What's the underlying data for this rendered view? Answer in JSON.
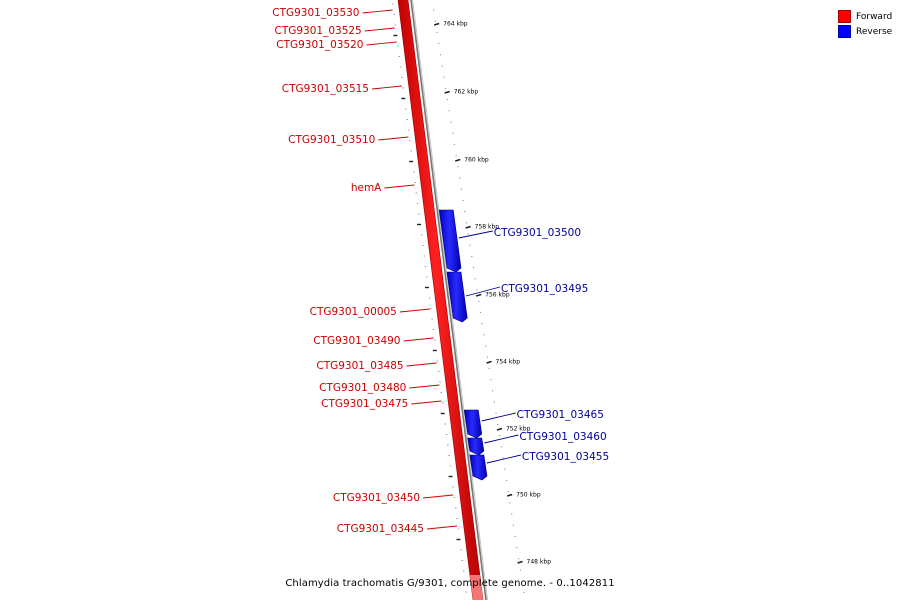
{
  "legend": {
    "items": [
      {
        "label": "Forward",
        "color": "#ff0000"
      },
      {
        "label": "Reverse",
        "color": "#0000ff"
      }
    ]
  },
  "footer": {
    "title": "Chlamydia trachomatis G/9301, complete genome. - 0..1042811"
  },
  "colors": {
    "forward": "#ff0000",
    "forward_label": "#cc0000",
    "reverse": "#0000ff",
    "reverse_label": "#000099",
    "axis": "#666666"
  },
  "scale_labels": [
    "764 kbp",
    "762 kbp",
    "760 kbp",
    "758 kbp",
    "756 kbp",
    "754 kbp",
    "752 kbp",
    "750 kbp",
    "748 kbp"
  ],
  "forward_genes": [
    "CTG9301_03530",
    "CTG9301_03525",
    "CTG9301_03520",
    "CTG9301_03515",
    "CTG9301_03510",
    "hemA",
    "CTG9301_00005",
    "CTG9301_03490",
    "CTG9301_03485",
    "CTG9301_03480",
    "CTG9301_03475",
    "CTG9301_03450",
    "CTG9301_03445"
  ],
  "reverse_genes": [
    "CTG9301_03500",
    "CTG9301_03495",
    "CTG9301_03465",
    "CTG9301_03460",
    "CTG9301_03455"
  ]
}
